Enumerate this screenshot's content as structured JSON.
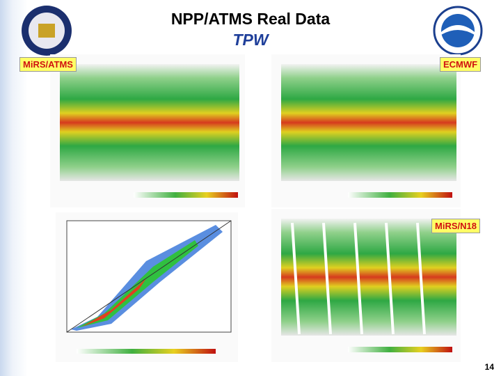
{
  "header": {
    "title": "NPP/ATMS Real Data",
    "subtitle": "TPW"
  },
  "panels": [
    {
      "label": "MiRS/ATMS"
    },
    {
      "label": "ECMWF"
    },
    {
      "label": "MiRS/N18"
    }
  ],
  "page_number": "14"
}
